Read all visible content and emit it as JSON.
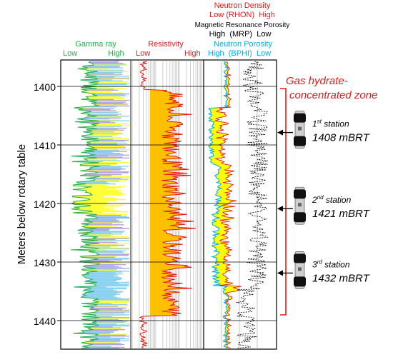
{
  "headers": {
    "gamma": {
      "title": "Gamma ray",
      "low": "Low",
      "high": "High",
      "color": "#22b04a"
    },
    "resistivity": {
      "title": "Resistivity",
      "low": "Low",
      "high": "High",
      "color": "#e41a1c"
    },
    "density": {
      "title": "Neutron Density",
      "scale": "Low (RHON)  High",
      "color": "#e41a1c"
    },
    "mrp": {
      "title": "Magnetic Resonance Porosity",
      "scale": "High  (MRP)  Low",
      "color": "#000000"
    },
    "neutron": {
      "title": "Neutron Porosity",
      "scale": "High  (BPHI)  Low",
      "color": "#00aeef"
    }
  },
  "axis": {
    "ylabel": "Meters below rotary table",
    "ticks": [
      "1400",
      "1410",
      "1420",
      "1430",
      "1440"
    ]
  },
  "zone": {
    "label_line1": "Gas hydrate-",
    "label_line2": "concentrated zone",
    "color": "#e41a1c"
  },
  "stations": [
    {
      "ordinal_num": "1",
      "ordinal_suffix": "st",
      "word": "station",
      "depth_label": "1408 mBRT"
    },
    {
      "ordinal_num": "2",
      "ordinal_suffix": "nd",
      "word": "station",
      "depth_label": "1421 mBRT"
    },
    {
      "ordinal_num": "3",
      "ordinal_suffix": "rd",
      "word": "station",
      "depth_label": "1432 mBRT"
    }
  ],
  "colors": {
    "hydrate_fill": "#ffc000",
    "porosity_fill": "#ffff00",
    "gamma_fill_a": "#8ad1f0",
    "gamma_fill_b": "#ffff33",
    "gamma_fill_c": "#b3a3e0"
  }
}
